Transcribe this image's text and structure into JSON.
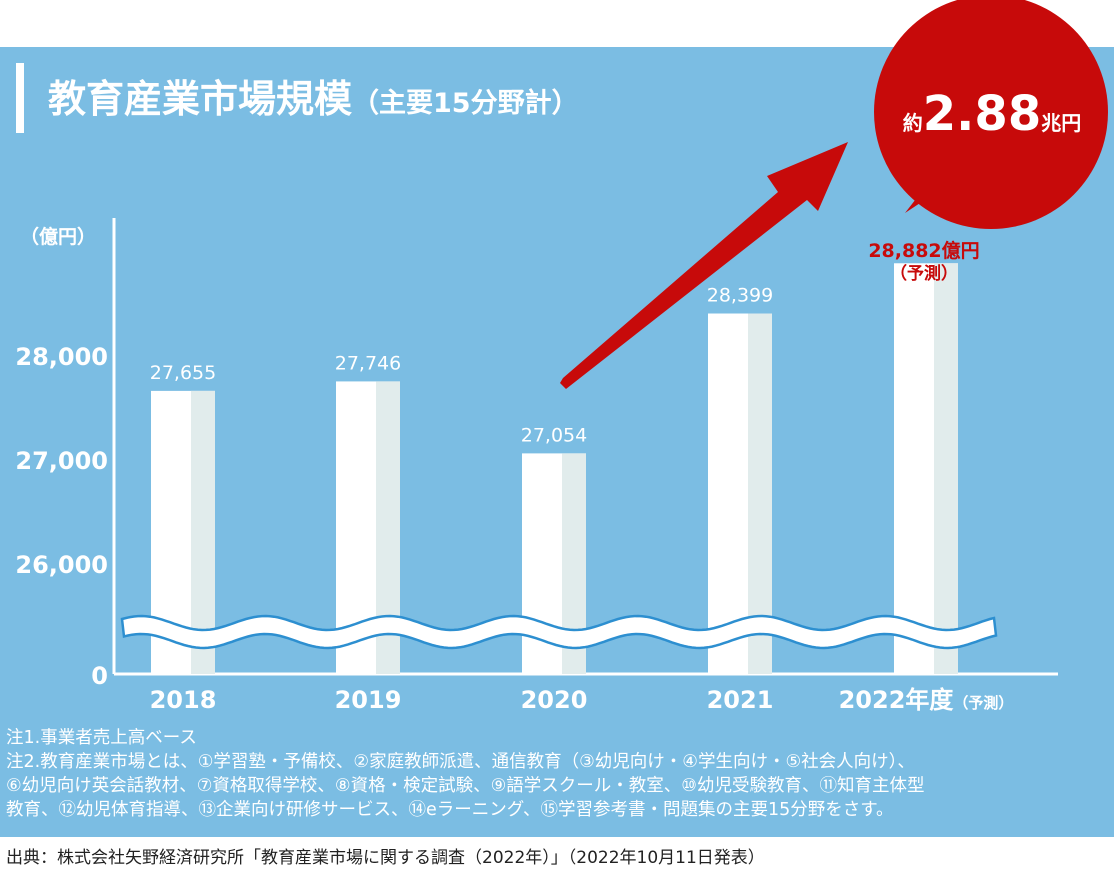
{
  "title": "教育産業市場規模",
  "title_sub": "（主要15分野計）",
  "callout": {
    "prefix": "約",
    "value": "2.88",
    "suffix": "兆円"
  },
  "forecast_label_value": "28,882億円",
  "forecast_label_note": "（予測）",
  "colors": {
    "panel": "#7bbde3",
    "bar": "#ffffff",
    "bar_shade": "#e1ecec",
    "accent": "#c70a0a",
    "wave": "#ffffff",
    "wave_stroke": "#2d8fd0"
  },
  "chart_data": {
    "type": "bar",
    "ylabel": "（億円）",
    "categories": [
      "2018",
      "2019",
      "2020",
      "2021",
      "2022年度"
    ],
    "category_suffix": "（予測）",
    "values": [
      27655,
      27746,
      27054,
      28399,
      28882
    ],
    "value_labels": [
      "27,655",
      "27,746",
      "27,054",
      "28,399",
      "28,882"
    ],
    "y_ticks": [
      {
        "value": 0,
        "label": "0"
      },
      {
        "value": 26000,
        "label": "26,000"
      },
      {
        "value": 27000,
        "label": "27,000"
      },
      {
        "value": 28000,
        "label": "28,000"
      }
    ],
    "axis_break": true,
    "forecast_index": 4
  },
  "notes": [
    "注1.事業者売上高ベース",
    "注2.教育産業市場とは、①学習塾・予備校、②家庭教師派遣、通信教育（③幼児向け・④学生向け・⑤社会人向け）、",
    "⑥幼児向け英会話教材、⑦資格取得学校、⑧資格・検定試験、⑨語学スクール・教室、⑩幼児受験教育、⑪知育主体型",
    "教育、⑫幼児体育指導、⑬企業向け研修サービス、⑭eラーニング、⑮学習参考書・問題集の主要15分野をさす。"
  ],
  "source": "出典：株式会社矢野経済研究所「教育産業市場に関する調査（2022年）」（2022年10月11日発表）"
}
